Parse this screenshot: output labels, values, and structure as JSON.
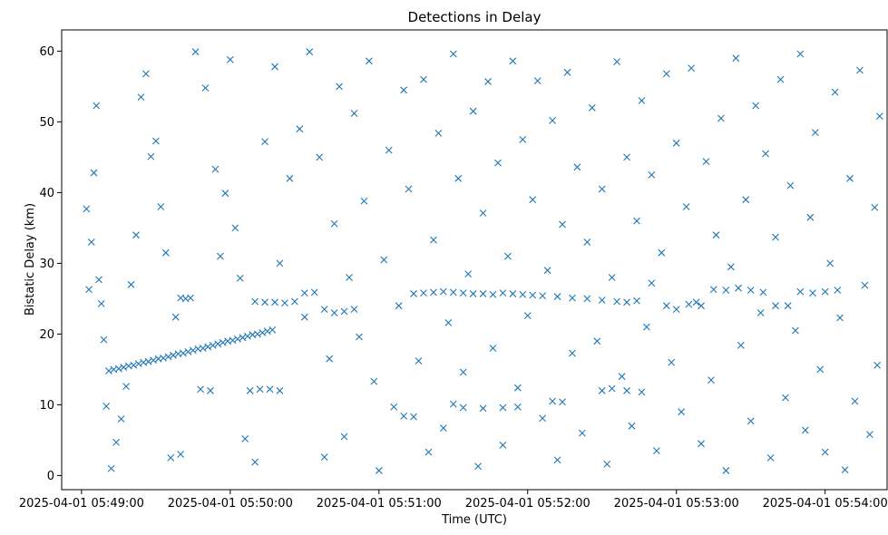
{
  "chart_data": {
    "type": "scatter",
    "title": "Detections in Delay",
    "xlabel": "Time (UTC)",
    "ylabel": "Bistatic Delay (km)",
    "marker": "x",
    "color": "#1f77b4",
    "grid": false,
    "xlim": [
      "2025-04-01 05:48:52",
      "2025-04-01 05:54:25"
    ],
    "ylim": [
      -2,
      63
    ],
    "x_ticks": [
      "2025-04-01 05:49:00",
      "2025-04-01 05:50:00",
      "2025-04-01 05:51:00",
      "2025-04-01 05:52:00",
      "2025-04-01 05:53:00",
      "2025-04-01 05:54:00"
    ],
    "y_ticks": [
      0,
      10,
      20,
      30,
      40,
      50,
      60
    ],
    "series": [
      {
        "points": [
          [
            "05:49:11",
            14.8
          ],
          [
            "05:49:13",
            15.0
          ],
          [
            "05:49:15",
            15.1
          ],
          [
            "05:49:17",
            15.3
          ],
          [
            "05:49:19",
            15.5
          ],
          [
            "05:49:21",
            15.6
          ],
          [
            "05:49:23",
            15.8
          ],
          [
            "05:49:25",
            16.0
          ],
          [
            "05:49:27",
            16.1
          ],
          [
            "05:49:29",
            16.3
          ],
          [
            "05:49:31",
            16.5
          ],
          [
            "05:49:33",
            16.6
          ],
          [
            "05:49:35",
            16.8
          ],
          [
            "05:49:37",
            17.0
          ],
          [
            "05:49:39",
            17.2
          ],
          [
            "05:49:41",
            17.3
          ],
          [
            "05:49:43",
            17.5
          ],
          [
            "05:49:45",
            17.7
          ],
          [
            "05:49:47",
            17.9
          ],
          [
            "05:49:49",
            18.0
          ],
          [
            "05:49:51",
            18.2
          ],
          [
            "05:49:53",
            18.4
          ],
          [
            "05:49:55",
            18.6
          ],
          [
            "05:49:57",
            18.8
          ],
          [
            "05:49:59",
            19.0
          ],
          [
            "05:50:01",
            19.1
          ],
          [
            "05:50:03",
            19.3
          ],
          [
            "05:50:05",
            19.5
          ],
          [
            "05:50:07",
            19.7
          ],
          [
            "05:50:09",
            19.9
          ],
          [
            "05:50:11",
            20.0
          ],
          [
            "05:50:13",
            20.2
          ],
          [
            "05:50:15",
            20.4
          ],
          [
            "05:50:17",
            20.6
          ],
          [
            "05:49:40",
            25.1
          ],
          [
            "05:49:42",
            25.0
          ],
          [
            "05:49:44",
            25.1
          ],
          [
            "05:50:10",
            24.6
          ],
          [
            "05:50:14",
            24.5
          ],
          [
            "05:50:18",
            24.5
          ],
          [
            "05:50:22",
            24.4
          ],
          [
            "05:50:26",
            24.6
          ],
          [
            "05:50:30",
            25.8
          ],
          [
            "05:50:34",
            25.9
          ],
          [
            "05:50:38",
            23.5
          ],
          [
            "05:50:42",
            23.0
          ],
          [
            "05:50:46",
            23.2
          ],
          [
            "05:50:50",
            23.5
          ],
          [
            "05:51:14",
            25.7
          ],
          [
            "05:51:18",
            25.8
          ],
          [
            "05:51:22",
            25.9
          ],
          [
            "05:51:26",
            26.0
          ],
          [
            "05:51:30",
            25.9
          ],
          [
            "05:51:34",
            25.8
          ],
          [
            "05:51:38",
            25.7
          ],
          [
            "05:51:42",
            25.7
          ],
          [
            "05:51:46",
            25.6
          ],
          [
            "05:51:50",
            25.8
          ],
          [
            "05:51:54",
            25.7
          ],
          [
            "05:51:58",
            25.6
          ],
          [
            "05:52:02",
            25.5
          ],
          [
            "05:52:06",
            25.4
          ],
          [
            "05:52:12",
            25.3
          ],
          [
            "05:52:18",
            25.1
          ],
          [
            "05:52:24",
            25.0
          ],
          [
            "05:52:30",
            24.8
          ],
          [
            "05:52:36",
            24.6
          ],
          [
            "05:52:40",
            24.5
          ],
          [
            "05:52:44",
            24.7
          ],
          [
            "05:52:50",
            27.2
          ],
          [
            "05:52:56",
            24.0
          ],
          [
            "05:53:00",
            23.5
          ],
          [
            "05:53:05",
            24.2
          ],
          [
            "05:53:10",
            24.0
          ],
          [
            "05:53:15",
            26.3
          ],
          [
            "05:53:20",
            26.2
          ],
          [
            "05:53:25",
            26.5
          ],
          [
            "05:53:30",
            26.2
          ],
          [
            "05:53:35",
            25.9
          ],
          [
            "05:53:40",
            24.0
          ],
          [
            "05:53:45",
            24.0
          ],
          [
            "05:53:50",
            26.0
          ],
          [
            "05:53:55",
            25.8
          ],
          [
            "05:54:00",
            26.0
          ],
          [
            "05:54:05",
            26.2
          ],
          [
            "05:49:48",
            12.2
          ],
          [
            "05:49:52",
            12.0
          ],
          [
            "05:50:08",
            12.0
          ],
          [
            "05:50:12",
            12.2
          ],
          [
            "05:50:16",
            12.2
          ],
          [
            "05:50:20",
            12.0
          ],
          [
            "05:51:10",
            8.4
          ],
          [
            "05:51:14",
            8.3
          ],
          [
            "05:51:30",
            10.1
          ],
          [
            "05:51:34",
            9.6
          ],
          [
            "05:51:42",
            9.5
          ],
          [
            "05:51:50",
            9.6
          ],
          [
            "05:51:56",
            9.7
          ],
          [
            "05:52:10",
            10.5
          ],
          [
            "05:52:14",
            10.4
          ],
          [
            "05:52:30",
            12.0
          ],
          [
            "05:52:34",
            12.3
          ],
          [
            "05:52:40",
            12.0
          ],
          [
            "05:52:46",
            11.8
          ],
          [
            "05:49:02",
            37.7
          ],
          [
            "05:49:03",
            26.3
          ],
          [
            "05:49:04",
            33.0
          ],
          [
            "05:49:05",
            42.8
          ],
          [
            "05:49:06",
            52.3
          ],
          [
            "05:49:07",
            27.7
          ],
          [
            "05:49:08",
            24.3
          ],
          [
            "05:49:09",
            19.2
          ],
          [
            "05:49:10",
            9.8
          ],
          [
            "05:49:12",
            1.0
          ],
          [
            "05:49:14",
            4.7
          ],
          [
            "05:49:16",
            8.0
          ],
          [
            "05:49:18",
            12.6
          ],
          [
            "05:49:20",
            27.0
          ],
          [
            "05:49:22",
            34.0
          ],
          [
            "05:49:24",
            53.5
          ],
          [
            "05:49:26",
            56.8
          ],
          [
            "05:49:28",
            45.1
          ],
          [
            "05:49:30",
            47.3
          ],
          [
            "05:49:32",
            38.0
          ],
          [
            "05:49:34",
            31.5
          ],
          [
            "05:49:36",
            2.5
          ],
          [
            "05:49:38",
            22.4
          ],
          [
            "05:49:40",
            3.0
          ],
          [
            "05:49:46",
            59.9
          ],
          [
            "05:49:50",
            54.8
          ],
          [
            "05:49:54",
            43.3
          ],
          [
            "05:49:56",
            31.0
          ],
          [
            "05:49:58",
            39.9
          ],
          [
            "05:50:00",
            58.8
          ],
          [
            "05:50:02",
            35.0
          ],
          [
            "05:50:04",
            27.9
          ],
          [
            "05:50:06",
            5.2
          ],
          [
            "05:50:10",
            1.9
          ],
          [
            "05:50:14",
            47.2
          ],
          [
            "05:50:18",
            57.8
          ],
          [
            "05:50:20",
            30.0
          ],
          [
            "05:50:24",
            42.0
          ],
          [
            "05:50:28",
            49.0
          ],
          [
            "05:50:30",
            22.4
          ],
          [
            "05:50:32",
            59.9
          ],
          [
            "05:50:36",
            45.0
          ],
          [
            "05:50:38",
            2.6
          ],
          [
            "05:50:40",
            16.5
          ],
          [
            "05:50:42",
            35.6
          ],
          [
            "05:50:44",
            55.0
          ],
          [
            "05:50:46",
            5.5
          ],
          [
            "05:50:48",
            28.0
          ],
          [
            "05:50:50",
            51.2
          ],
          [
            "05:50:52",
            19.6
          ],
          [
            "05:50:54",
            38.8
          ],
          [
            "05:50:56",
            58.6
          ],
          [
            "05:50:58",
            13.3
          ],
          [
            "05:51:00",
            0.7
          ],
          [
            "05:51:02",
            30.5
          ],
          [
            "05:51:04",
            46.0
          ],
          [
            "05:51:06",
            9.7
          ],
          [
            "05:51:08",
            24.0
          ],
          [
            "05:51:10",
            54.5
          ],
          [
            "05:51:12",
            40.5
          ],
          [
            "05:51:16",
            16.2
          ],
          [
            "05:51:18",
            56.0
          ],
          [
            "05:51:20",
            3.3
          ],
          [
            "05:51:22",
            33.3
          ],
          [
            "05:51:24",
            48.4
          ],
          [
            "05:51:26",
            6.7
          ],
          [
            "05:51:28",
            21.6
          ],
          [
            "05:51:30",
            59.6
          ],
          [
            "05:51:32",
            42.0
          ],
          [
            "05:51:34",
            14.6
          ],
          [
            "05:51:36",
            28.5
          ],
          [
            "05:51:38",
            51.5
          ],
          [
            "05:51:40",
            1.3
          ],
          [
            "05:51:42",
            37.1
          ],
          [
            "05:51:44",
            55.7
          ],
          [
            "05:51:46",
            18.0
          ],
          [
            "05:51:48",
            44.2
          ],
          [
            "05:51:50",
            4.3
          ],
          [
            "05:51:52",
            31.0
          ],
          [
            "05:51:54",
            58.6
          ],
          [
            "05:51:56",
            12.4
          ],
          [
            "05:51:58",
            47.5
          ],
          [
            "05:52:00",
            22.6
          ],
          [
            "05:52:02",
            39.0
          ],
          [
            "05:52:04",
            55.8
          ],
          [
            "05:52:06",
            8.1
          ],
          [
            "05:52:08",
            29.0
          ],
          [
            "05:52:10",
            50.2
          ],
          [
            "05:52:12",
            2.2
          ],
          [
            "05:52:14",
            35.5
          ],
          [
            "05:52:16",
            57.0
          ],
          [
            "05:52:18",
            17.3
          ],
          [
            "05:52:20",
            43.6
          ],
          [
            "05:52:22",
            6.0
          ],
          [
            "05:52:24",
            33.0
          ],
          [
            "05:52:26",
            52.0
          ],
          [
            "05:52:28",
            19.0
          ],
          [
            "05:52:30",
            40.5
          ],
          [
            "05:52:32",
            1.6
          ],
          [
            "05:52:34",
            28.0
          ],
          [
            "05:52:36",
            58.5
          ],
          [
            "05:52:38",
            14.0
          ],
          [
            "05:52:40",
            45.0
          ],
          [
            "05:52:42",
            7.0
          ],
          [
            "05:52:44",
            36.0
          ],
          [
            "05:52:46",
            53.0
          ],
          [
            "05:52:48",
            21.0
          ],
          [
            "05:52:50",
            42.5
          ],
          [
            "05:52:52",
            3.5
          ],
          [
            "05:52:54",
            31.5
          ],
          [
            "05:52:56",
            56.8
          ],
          [
            "05:52:58",
            16.0
          ],
          [
            "05:53:00",
            47.0
          ],
          [
            "05:53:02",
            9.0
          ],
          [
            "05:53:04",
            38.0
          ],
          [
            "05:53:06",
            57.6
          ],
          [
            "05:53:08",
            24.5
          ],
          [
            "05:53:10",
            4.5
          ],
          [
            "05:53:12",
            44.4
          ],
          [
            "05:53:14",
            13.5
          ],
          [
            "05:53:16",
            34.0
          ],
          [
            "05:53:18",
            50.5
          ],
          [
            "05:53:20",
            0.7
          ],
          [
            "05:53:22",
            29.5
          ],
          [
            "05:53:24",
            59.0
          ],
          [
            "05:53:26",
            18.4
          ],
          [
            "05:53:28",
            39.0
          ],
          [
            "05:53:30",
            7.7
          ],
          [
            "05:53:32",
            52.3
          ],
          [
            "05:53:34",
            23.0
          ],
          [
            "05:53:36",
            45.5
          ],
          [
            "05:53:38",
            2.5
          ],
          [
            "05:53:40",
            33.7
          ],
          [
            "05:53:42",
            56.0
          ],
          [
            "05:53:44",
            11.0
          ],
          [
            "05:53:46",
            41.0
          ],
          [
            "05:53:48",
            20.5
          ],
          [
            "05:53:50",
            59.6
          ],
          [
            "05:53:52",
            6.4
          ],
          [
            "05:53:54",
            36.5
          ],
          [
            "05:53:56",
            48.5
          ],
          [
            "05:53:58",
            15.0
          ],
          [
            "05:54:00",
            3.3
          ],
          [
            "05:54:02",
            30.0
          ],
          [
            "05:54:04",
            54.2
          ],
          [
            "05:54:06",
            22.3
          ],
          [
            "05:54:08",
            0.8
          ],
          [
            "05:54:10",
            42.0
          ],
          [
            "05:54:12",
            10.5
          ],
          [
            "05:54:14",
            57.3
          ],
          [
            "05:54:16",
            26.9
          ],
          [
            "05:54:18",
            5.8
          ],
          [
            "05:54:20",
            37.9
          ],
          [
            "05:54:21",
            15.6
          ],
          [
            "05:54:22",
            50.8
          ]
        ]
      }
    ]
  }
}
